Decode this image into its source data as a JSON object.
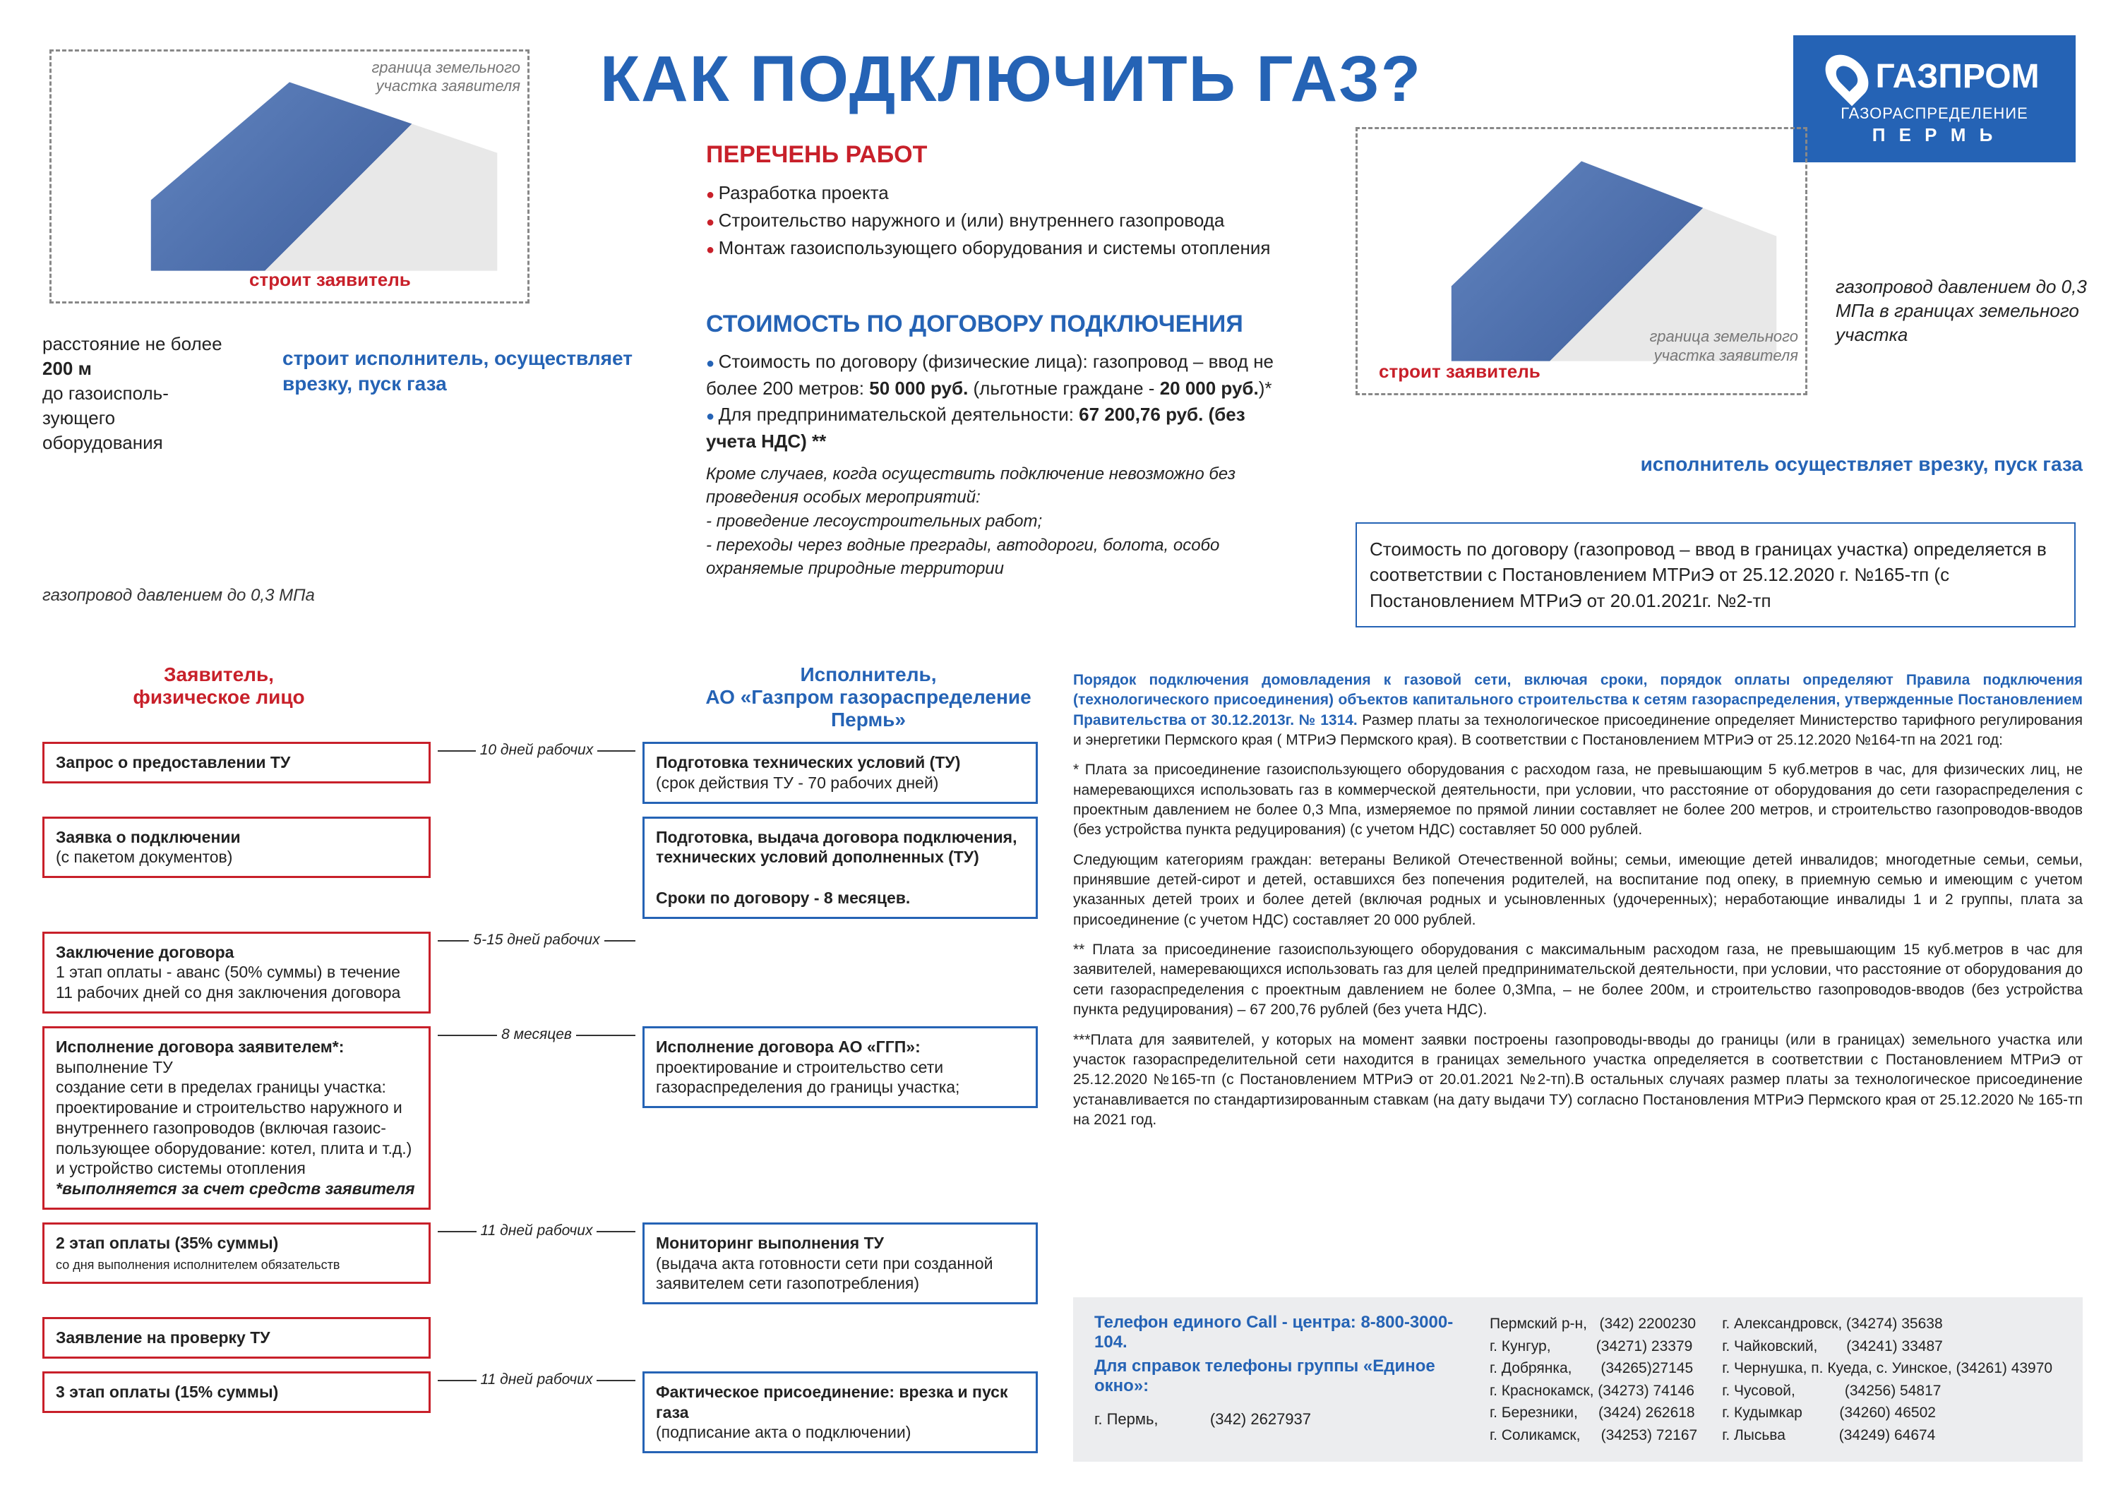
{
  "title": "КАК ПОДКЛЮЧИТЬ ГАЗ?",
  "logo": {
    "main": "ГАЗПРОМ",
    "sub": "ГАЗОРАСПРЕДЕЛЕНИЕ",
    "city": "П Е Р М Ь"
  },
  "houseLeft": {
    "boundary": "граница земельного участка заявителя",
    "builds": "строит  заявитель",
    "distance": "расстояние не более",
    "distanceBold": "200 м",
    "distanceTail": "до газоисполь-зующего оборудования",
    "executor": "строит  исполнитель, осуществляет врезку, пуск газа",
    "pipe": "газопровод давлением до 0,3 МПа"
  },
  "houseRight": {
    "boundary": "граница земельного участка заявителя",
    "builds": "строит  заявитель",
    "pipe": "газопровод давлением до 0,3 МПа в границах земельного участка",
    "executor": "исполнитель осуществляет врезку, пуск газа"
  },
  "works": {
    "title": "ПЕРЕЧЕНЬ РАБОТ",
    "items": [
      "Разработка проекта",
      "Строительство наружного и (или) внутреннего газопровода",
      "Монтаж газоиспользующего оборудования и системы отопления"
    ]
  },
  "cost": {
    "title": "СТОИМОСТЬ ПО ДОГОВОРУ ПОДКЛЮЧЕНИЯ",
    "item1a": "Стоимость  по договору (физические лица): газопровод – ввод не более 200 метров: ",
    "item1b": "50 000 руб.",
    "item1c": " (льготные граждане -  ",
    "item1d": "20 000 руб.",
    "item1e": ")*",
    "item2a": "Для предпринимательской деятельности: ",
    "item2b": "67 200,76 руб. (без учета НДС) **",
    "note": "Кроме случаев, когда осуществить подключение невозможно без проведения особых мероприятий:\n- проведение лесоустроительных работ;\n- переходы через водные преграды, автодороги, болота, особо охраняемые природные территории"
  },
  "rightCostBox": "Стоимость  по договору (газопровод – ввод в границах участка) определяется в соответствии с Постановлением МТРиЭ от 25.12.2020 г. №165-тп (с Постановлением МТРиЭ от 20.01.2021г. №2-тп",
  "flow": {
    "headerRed": "Заявитель,\nфизическое лицо",
    "headerBlue": "Исполнитель,\nАО «Газпром газораспределение Пермь»",
    "rows": [
      {
        "red": "<b>Запрос о предоставлении ТУ</b>",
        "dur": "10 дней рабочих",
        "blue": "<b>Подготовка технических условий  (ТУ)</b><br>(срок действия ТУ - 70 рабочих дней)"
      },
      {
        "red": "<b>Заявка о подключении</b><br>(с пакетом документов)",
        "dur": "",
        "blue": "<b>Подготовка, выдача договора подключения, технических условий дополненных (ТУ)</b><br><br><b>Сроки по договору - 8 месяцев.</b>"
      },
      {
        "red": "<b>Заключение договора</b><br>1 этап оплаты - аванс (50% суммы) в течение 11 рабочих дней со дня заключения договора",
        "dur": "5-15 дней рабочих",
        "blue": ""
      },
      {
        "red": "<b>Исполнение договора заявителем*:</b><br>выполнение ТУ<br>создание сети в пределах границы участка: проектирование и строительство наружного и внутреннего газопроводов (включая газоис-пользующее оборудование: котел, плита и т.д.) и устройство системы отопления<br><i><b>*выполняется за счет средств заявителя</b></i>",
        "dur": "8 месяцев",
        "blue": "<b>Исполнение договора АО «ГГП»:</b><br>проектирование и строительство сети газораспределения до границы участка;"
      },
      {
        "red": "<b>2 этап оплаты (35% суммы)</b><br><span style='font-size:18px'>со дня выполнения исполнителем обязательств</span>",
        "dur": "11 дней рабочих",
        "blue": "<b>Мониторинг выполнения ТУ</b><br>(выдача акта готовности сети при созданной заявителем сети газопотребления)"
      },
      {
        "red": "<b>Заявление на проверку ТУ</b>",
        "dur": "",
        "blue": ""
      },
      {
        "red": "<b>3 этап оплаты (15% суммы)</b>",
        "dur": "11 дней рабочих",
        "blue": "<b>Фактическое присоединение: врезка и пуск газа</b><br>(подписание акта о подключении)"
      }
    ]
  },
  "legal": {
    "intro": "Порядок подключения домовладения к газовой сети, включая сроки, порядок оплаты определяют Правила подключения (технологического присоединения) объектов капитального строительства к сетям газораспределения, утвержденные Постановлением Правительства от 30.12.2013г. № 1314.",
    "intro2": " Размер платы за технологическое присоединение определяет Министерство тарифного регулирования и энергетики Пермского края ( МТРиЭ Пермского края). В соответствии с Постановлением МТРиЭ от 25.12.2020   №164-тп на 2021 год:",
    "p1": "* Плата за присоединение газоиспользующего оборудования с расходом газа, не превышающим 5 куб.метров в час, для физических лиц, не намеревающихся использовать газ в коммерческой деятельности, при условии, что расстояние от оборудования до сети газораспределения с проектным давлением не более 0,3 Мпа, измеряемое по прямой линии составляет не более 200 метров, и строительство газопроводов-вводов (без устройства пункта редуцирования) (с учетом НДС) составляет 50 000 рублей.",
    "p2": "Следующим категориям граждан:  ветераны Великой Отечественной войны; семьи, имеющие детей инвалидов; многодетные семьи, семьи, принявшие детей-сирот и детей, оставшихся без попечения родителей, на воспитание под опеку, в приемную семью и имеющим с учетом указанных детей троих и более детей (включая родных и усыновленных (удочеренных); неработающие инвалиды 1 и 2 группы, плата за присоединение (с учетом НДС) составляет  20 000 рублей.",
    "p3": "** Плата за присоединение газоиспользующего оборудования с максимальным расходом газа, не превышающим 15 куб.метров в час для заявителей, намеревающихся использовать газ для целей предпринимательской деятельности, при условии, что расстояние от оборудования до сети газораспределения с проектным давлением не более 0,3Мпа, – не более 200м, и строительство газопроводов-вводов (без устройства пункта редуцирования) – 67 200,76 рублей (без учета НДС).",
    "p4": "***Плата для заявителей, у которых на момент заявки построены газопроводы-вводы до границы (или в границах) земельного участка или участок газораспределительной сети находится в границах земельного участка определяется в соответствии с Постановлением МТРиЭ от 25.12.2020 №165-тп (с Постановлением МТРиЭ от 20.01.2021 №2-тп).В остальных случаях размер платы за технологическое присоединение устанавливается по стандартизированным ставкам (на дату выдачи ТУ) согласно Постановления МТРиЭ Пермского края от 25.12.2020 № 165-тп на 2021 год."
  },
  "contacts": {
    "call": "Телефон единого Call - центра: 8-800-3000-104.",
    "window": "Для справок телефоны группы «Единое окно»:",
    "perm": "г. Пермь,            (342) 2627937",
    "col1": [
      "Пермский р-н,   (342) 2200230",
      "г. Кунгур,           (34271) 23379",
      "г. Добрянка,       (34265)27145",
      "г. Краснокамск, (34273) 74146",
      "г. Березники,     (3424) 262618",
      "г. Соликамск,     (34253) 72167"
    ],
    "col2": [
      "г. Александровск, (34274) 35638",
      "г. Чайковский,       (34241) 33487",
      "г. Чернушка, п. Куеда, с. Уинское, (34261) 43970",
      "г. Чусовой,            (34256) 54817",
      "г. Кудымкар         (34260) 46502",
      "г. Лысьва             (34249) 64674"
    ]
  },
  "colors": {
    "blue": "#2563b5",
    "red": "#c8202a",
    "grey": "#888888",
    "lightgrey": "#ecedef"
  }
}
